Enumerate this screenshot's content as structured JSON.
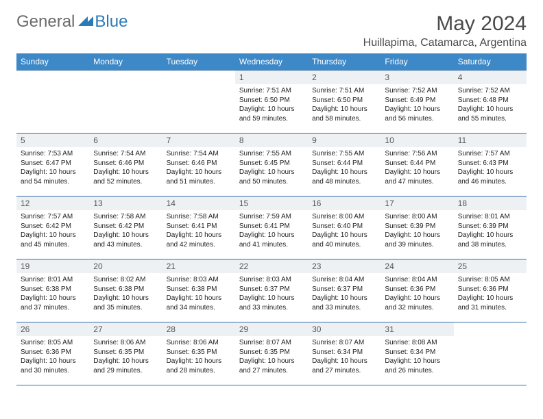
{
  "logo": {
    "textA": "General",
    "textB": "Blue",
    "accent": "#2a7ab8",
    "gray": "#6b6b6b"
  },
  "title": "May 2024",
  "location": "Huillapima, Catamarca, Argentina",
  "header_bg": "#3d88c7",
  "row_border": "#2f6aa3",
  "daynum_bg": "#eef1f4",
  "weekdays": [
    "Sunday",
    "Monday",
    "Tuesday",
    "Wednesday",
    "Thursday",
    "Friday",
    "Saturday"
  ],
  "weeks": [
    [
      null,
      null,
      null,
      {
        "n": "1",
        "sr": "7:51 AM",
        "ss": "6:50 PM",
        "dl": "10 hours and 59 minutes."
      },
      {
        "n": "2",
        "sr": "7:51 AM",
        "ss": "6:50 PM",
        "dl": "10 hours and 58 minutes."
      },
      {
        "n": "3",
        "sr": "7:52 AM",
        "ss": "6:49 PM",
        "dl": "10 hours and 56 minutes."
      },
      {
        "n": "4",
        "sr": "7:52 AM",
        "ss": "6:48 PM",
        "dl": "10 hours and 55 minutes."
      }
    ],
    [
      {
        "n": "5",
        "sr": "7:53 AM",
        "ss": "6:47 PM",
        "dl": "10 hours and 54 minutes."
      },
      {
        "n": "6",
        "sr": "7:54 AM",
        "ss": "6:46 PM",
        "dl": "10 hours and 52 minutes."
      },
      {
        "n": "7",
        "sr": "7:54 AM",
        "ss": "6:46 PM",
        "dl": "10 hours and 51 minutes."
      },
      {
        "n": "8",
        "sr": "7:55 AM",
        "ss": "6:45 PM",
        "dl": "10 hours and 50 minutes."
      },
      {
        "n": "9",
        "sr": "7:55 AM",
        "ss": "6:44 PM",
        "dl": "10 hours and 48 minutes."
      },
      {
        "n": "10",
        "sr": "7:56 AM",
        "ss": "6:44 PM",
        "dl": "10 hours and 47 minutes."
      },
      {
        "n": "11",
        "sr": "7:57 AM",
        "ss": "6:43 PM",
        "dl": "10 hours and 46 minutes."
      }
    ],
    [
      {
        "n": "12",
        "sr": "7:57 AM",
        "ss": "6:42 PM",
        "dl": "10 hours and 45 minutes."
      },
      {
        "n": "13",
        "sr": "7:58 AM",
        "ss": "6:42 PM",
        "dl": "10 hours and 43 minutes."
      },
      {
        "n": "14",
        "sr": "7:58 AM",
        "ss": "6:41 PM",
        "dl": "10 hours and 42 minutes."
      },
      {
        "n": "15",
        "sr": "7:59 AM",
        "ss": "6:41 PM",
        "dl": "10 hours and 41 minutes."
      },
      {
        "n": "16",
        "sr": "8:00 AM",
        "ss": "6:40 PM",
        "dl": "10 hours and 40 minutes."
      },
      {
        "n": "17",
        "sr": "8:00 AM",
        "ss": "6:39 PM",
        "dl": "10 hours and 39 minutes."
      },
      {
        "n": "18",
        "sr": "8:01 AM",
        "ss": "6:39 PM",
        "dl": "10 hours and 38 minutes."
      }
    ],
    [
      {
        "n": "19",
        "sr": "8:01 AM",
        "ss": "6:38 PM",
        "dl": "10 hours and 37 minutes."
      },
      {
        "n": "20",
        "sr": "8:02 AM",
        "ss": "6:38 PM",
        "dl": "10 hours and 35 minutes."
      },
      {
        "n": "21",
        "sr": "8:03 AM",
        "ss": "6:38 PM",
        "dl": "10 hours and 34 minutes."
      },
      {
        "n": "22",
        "sr": "8:03 AM",
        "ss": "6:37 PM",
        "dl": "10 hours and 33 minutes."
      },
      {
        "n": "23",
        "sr": "8:04 AM",
        "ss": "6:37 PM",
        "dl": "10 hours and 33 minutes."
      },
      {
        "n": "24",
        "sr": "8:04 AM",
        "ss": "6:36 PM",
        "dl": "10 hours and 32 minutes."
      },
      {
        "n": "25",
        "sr": "8:05 AM",
        "ss": "6:36 PM",
        "dl": "10 hours and 31 minutes."
      }
    ],
    [
      {
        "n": "26",
        "sr": "8:05 AM",
        "ss": "6:36 PM",
        "dl": "10 hours and 30 minutes."
      },
      {
        "n": "27",
        "sr": "8:06 AM",
        "ss": "6:35 PM",
        "dl": "10 hours and 29 minutes."
      },
      {
        "n": "28",
        "sr": "8:06 AM",
        "ss": "6:35 PM",
        "dl": "10 hours and 28 minutes."
      },
      {
        "n": "29",
        "sr": "8:07 AM",
        "ss": "6:35 PM",
        "dl": "10 hours and 27 minutes."
      },
      {
        "n": "30",
        "sr": "8:07 AM",
        "ss": "6:34 PM",
        "dl": "10 hours and 27 minutes."
      },
      {
        "n": "31",
        "sr": "8:08 AM",
        "ss": "6:34 PM",
        "dl": "10 hours and 26 minutes."
      },
      null
    ]
  ],
  "labels": {
    "sunrise": "Sunrise: ",
    "sunset": "Sunset: ",
    "daylight": "Daylight: "
  }
}
